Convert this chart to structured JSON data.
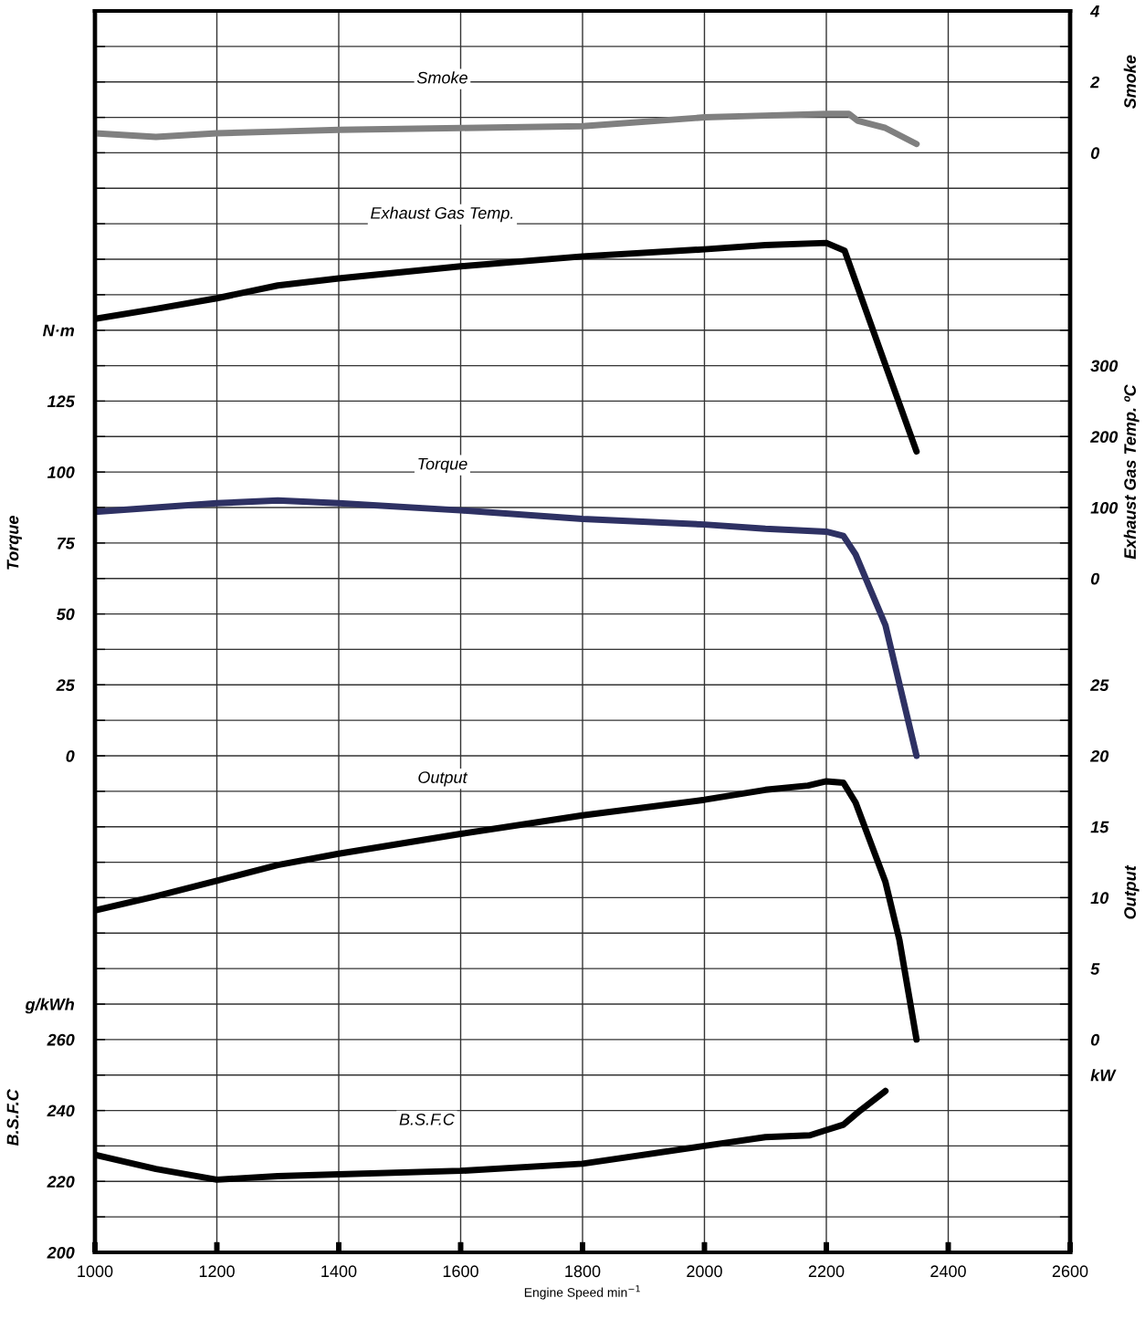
{
  "chart_data": [
    {
      "type": "line",
      "xlabel": "Engine Speed min$^{−1}$",
      "ylabel": "Torque",
      "y2label": "Exhaust Gas Temp. ºC",
      "y3label": "Smoke",
      "xlim": [
        1000,
        2600
      ],
      "xticks": [
        1000,
        1200,
        1400,
        1600,
        1800,
        2000,
        2200,
        2400,
        2600
      ],
      "ylim": [
        -175,
        262.5
      ],
      "yticks": [
        {
          "value": -175,
          "label": null
        },
        {
          "value": -162.5,
          "label": null
        },
        {
          "value": -150,
          "label": null
        },
        {
          "value": -137.5,
          "label": null
        },
        {
          "value": -125,
          "label": null
        },
        {
          "value": -112.5,
          "label": null
        },
        {
          "value": -100,
          "label": null
        },
        {
          "value": -87.5,
          "label": null
        },
        {
          "value": -75,
          "label": null
        },
        {
          "value": -62.5,
          "label": null
        },
        {
          "value": -50,
          "label": null
        },
        {
          "value": -37.5,
          "label": null
        },
        {
          "value": -25,
          "label": null
        },
        {
          "value": -12.5,
          "label": null
        },
        0,
        {
          "value": 12.5,
          "label": null
        },
        25,
        {
          "value": 37.5,
          "label": null
        },
        50,
        {
          "value": 62.5,
          "label": null
        },
        75,
        {
          "value": 87.5,
          "label": null
        },
        100,
        {
          "value": 112.5,
          "label": null
        },
        125,
        {
          "value": 137.5,
          "label": null
        },
        {
          "value": 150,
          "label": "N·m"
        },
        {
          "value": 162.5,
          "label": null
        },
        {
          "value": 175,
          "label": null
        },
        {
          "value": 187.5,
          "label": null
        },
        {
          "value": 200,
          "label": null
        },
        {
          "value": 212.5,
          "label": null
        },
        {
          "value": 225,
          "label": null
        },
        {
          "value": 237.5,
          "label": null
        },
        {
          "value": 250,
          "label": null
        },
        {
          "value": 262.5,
          "label": null
        }
      ],
      "y2lim": [
        -950,
        800
      ],
      "y2ticks": [
        0,
        100,
        200,
        300
      ],
      "y3lim": [
        -31,
        4
      ],
      "y3ticks": [
        0,
        2,
        4
      ],
      "grid": true,
      "legend": false,
      "line_style": "solid",
      "marker": "none",
      "series": [
        {
          "name": "Smoke",
          "axis": "y3",
          "color": "#808080",
          "x": [
            1000,
            1100,
            1200,
            1300,
            1400,
            1600,
            1800,
            2000,
            2100,
            2200,
            2222,
            2237,
            2252,
            2297,
            2348
          ],
          "values": [
            0.55,
            0.45,
            0.55,
            0.6,
            0.65,
            0.7,
            0.75,
            1.0,
            1.05,
            1.1,
            1.1,
            1.1,
            0.9,
            0.7,
            0.25
          ]
        },
        {
          "name": "Exhaust Gas Temp.",
          "axis": "y2",
          "color": "#000000",
          "x": [
            1000,
            1100,
            1200,
            1300,
            1400,
            1600,
            1800,
            2000,
            2100,
            2200,
            2230,
            2297,
            2348
          ],
          "values": [
            366,
            380,
            395,
            413,
            423,
            440,
            454,
            464,
            470,
            473,
            462,
            301,
            179
          ]
        },
        {
          "name": "Torque",
          "color": "#2e3163",
          "x": [
            1000,
            1100,
            1200,
            1300,
            1400,
            1600,
            1800,
            2000,
            2100,
            2200,
            2228,
            2248,
            2297,
            2348
          ],
          "values": [
            86,
            87.5,
            89,
            90,
            89,
            86.5,
            83.5,
            81.5,
            80,
            79,
            77.5,
            71,
            46,
            0
          ]
        }
      ]
    },
    {
      "type": "line",
      "ylabel": "B.S.F.C",
      "y2label": "Output",
      "tick_labels": "y",
      "xlim": [
        1000,
        2600
      ],
      "xticks": [
        1000,
        1200,
        1400,
        1600,
        1800,
        2000,
        2200,
        2400,
        2600
      ],
      "ylim": [
        200,
        550
      ],
      "yticks": [
        200,
        220,
        240,
        260,
        {
          "value": 270,
          "label": "g/kWh"
        }
      ],
      "y2lim": [
        -15,
        72.5
      ],
      "y2ticks": [
        {
          "value": -2.5,
          "label": "kW"
        },
        0,
        5,
        10,
        15,
        20,
        25
      ],
      "line_style": "solid",
      "marker": "none",
      "series": [
        {
          "name": "Output",
          "axis": "y2",
          "color": "#000000",
          "x": [
            1000,
            1100,
            1200,
            1300,
            1400,
            1600,
            1800,
            2000,
            2100,
            2170,
            2200,
            2228,
            2248,
            2297,
            2320,
            2348
          ],
          "values": [
            9.1,
            10.1,
            11.2,
            12.3,
            13.1,
            14.5,
            15.8,
            16.9,
            17.6,
            17.9,
            18.2,
            18.1,
            16.7,
            11.1,
            7.0,
            0
          ]
        },
        {
          "name": "B.S.F.C",
          "color": "#000000",
          "x": [
            1000,
            1100,
            1200,
            1300,
            1400,
            1600,
            1800,
            2000,
            2100,
            2173,
            2200,
            2228,
            2252,
            2297
          ],
          "values": [
            227.5,
            223.5,
            220.5,
            221.5,
            222,
            223,
            225,
            230,
            232.5,
            233,
            234.5,
            236,
            239.5,
            245.5
          ]
        }
      ]
    }
  ]
}
